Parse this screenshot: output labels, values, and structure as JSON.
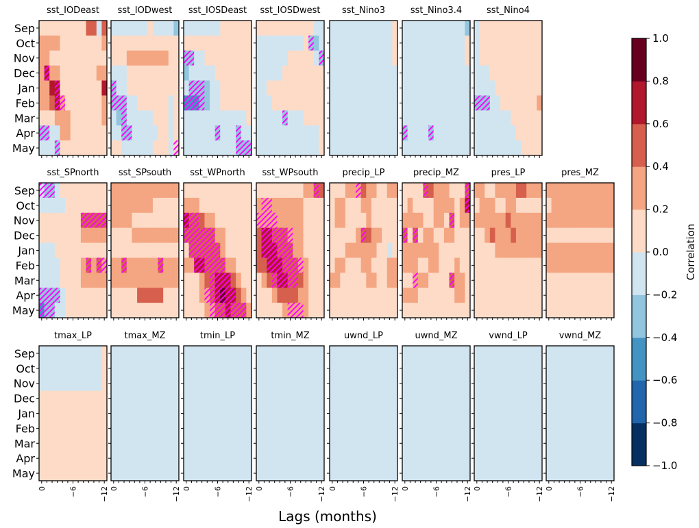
{
  "chart_data": {
    "type": "heatmap",
    "title": "",
    "xlabel": "Lags (months)",
    "ylabel": "",
    "x_tick_labels": [
      "0",
      "−6",
      "−12"
    ],
    "x_tick_values": [
      0,
      -6,
      -12
    ],
    "lags": [
      0,
      -1,
      -2,
      -3,
      -4,
      -5,
      -6,
      -7,
      -8,
      -9,
      -10,
      -11,
      -12
    ],
    "months": [
      "Sep",
      "Oct",
      "Nov",
      "Dec",
      "Jan",
      "Feb",
      "Mar",
      "Apr",
      "May"
    ],
    "colorbar": {
      "label": "Correlation",
      "range": [
        -1.0,
        1.0
      ],
      "levels": [
        -1.0,
        -0.8,
        -0.6,
        -0.4,
        -0.2,
        0.0,
        0.2,
        0.4,
        0.6,
        0.8,
        1.0
      ],
      "tick_labels": [
        "−1.0",
        "−0.8",
        "−0.6",
        "−0.4",
        "−0.2",
        "0.0",
        "0.2",
        "0.4",
        "0.6",
        "0.8",
        "1.0"
      ],
      "colors": [
        "#053061",
        "#2166ac",
        "#4393c3",
        "#92c5de",
        "#d1e5f0",
        "#fddbc7",
        "#f4a582",
        "#d6604d",
        "#b2182b",
        "#67001f"
      ]
    },
    "hatch_note": "Magenta diagonal hatching marks significant correlations",
    "hatch_color": "#ff00ff",
    "panel_rows": [
      [
        "sst_IODeast",
        "sst_IODwest",
        "sst_IOSDeast",
        "sst_IOSDwest",
        "sst_Nino3",
        "sst_Nino3.4",
        "sst_Nino4"
      ],
      [
        "sst_SPnorth",
        "sst_SPsouth",
        "sst_WPnorth",
        "sst_WPsouth",
        "precip_LP",
        "precip_MZ",
        "pres_LP",
        "pres_MZ"
      ],
      [
        "tmax_LP",
        "tmax_MZ",
        "tmin_LP",
        "tmin_MZ",
        "uwnd_LP",
        "uwnd_MZ",
        "vwnd_LP",
        "vwnd_MZ"
      ]
    ],
    "panels": {
      "sst_IODeast": {
        "v": [
          "0,0,0,0,0,0,0,0,0,2,2,-1,2",
          "1,1,1,1,0,0,0,0,0,0,0,0,1",
          "1,1,0,0,0,0,0,0,0,0,0,0,0",
          "1,3,1,1,0,0,0,0,0,0,0,1,1",
          "1,1,3,3,0,0,0,0,0,0,0,0,3",
          "1,1,2,3,1,0,0,0,0,0,0,0,1",
          "0,0,0,1,1,1,0,0,0,0,0,0,1",
          "-2,-2,-1,-1,1,1,0,0,0,0,0,0,0",
          "-1,-1,-1,-2,0,0,0,0,0,0,0,0,0"
        ],
        "h": [
          "",
          "",
          "",
          "1",
          "3",
          "3,4",
          "",
          "0,1",
          "3"
        ]
      },
      "sst_IODwest": {
        "v": [
          "-1,-1,-1,-1,-1,-1,-1,0,-1,-1,-1,-1,-2",
          "0,0,0,0,0,0,0,0,0,0,0,0,0",
          "0,0,0,1,1,1,1,1,1,1,1,0,0",
          "-1,-1,-1,0,0,0,0,0,0,0,0,0,0",
          "-2,-1,-1,0,0,0,0,0,0,0,0,0,0",
          "-2,-2,-2,-1,-1,0,0,0,0,0,0,-1,0",
          "-1,-2,-2,-1,-1,-1,-1,-1,0,0,0,-1,0",
          "-1,-1,-2,-2,-1,-1,-1,-1,-1,0,0,-1,0",
          "0,0,-1,-1,-1,-1,-1,-1,0,0,0,-1,0"
        ],
        "h": [
          "",
          "",
          "",
          "",
          "0",
          "0,1,2",
          "2",
          "2,3",
          "12"
        ]
      },
      "sst_IOSDeast": {
        "v": [
          "-1,-1,-1,-1,-1,-1,-1,0,0,0,0,0,0",
          "0,0,0,0,0,0,0,0,0,0,0,0,0",
          "-2,-2,-1,-1,0,0,0,0,0,0,0,0,0",
          "-2,-1,-1,-1,-1,-1,0,0,0,0,0,0,0",
          "-1,-2,-2,-2,-2,-1,-1,0,0,0,0,0,0",
          "-3,-3,-3,-2,-2,-1,-1,0,0,0,0,0,0",
          "-1,-1,-1,-1,-1,-1,-1,-1,-1,-1,-1,-1,0",
          "-1,-1,-1,-1,-1,-1,-2,-1,-1,-1,-2,-1,-1",
          "-1,-1,-1,-1,-1,-1,-1,-1,-1,-1,-2,-2,-2"
        ],
        "h": [
          "",
          "",
          "0,1",
          "",
          "1,2,3",
          "0,1,2,3",
          "",
          "6,10",
          "10,11,12"
        ]
      },
      "sst_IOSDwest": {
        "v": [
          "0,0,0,0,0,0,0,0,0,0,0,-1,-1",
          "-1,-1,-1,-1,-1,-1,-1,-1,-1,0,-2,-2,-1",
          "-1,-1,-1,-1,-1,-1,0,0,0,0,0,-1,-2",
          "-1,-1,-1,-1,-1,0,0,0,0,0,0,0,0",
          "-1,-1,0,0,0,0,0,0,0,0,0,0,0",
          "-1,-1,-1,0,0,0,0,0,0,0,0,0,0",
          "-1,-1,-1,-1,-1,-2,-1,-1,-1,0,0,0,0",
          "-1,-1,-1,-1,-1,-1,-1,-1,-1,-1,-1,-1,0",
          "-1,-1,-1,-1,-1,-1,-1,-1,-1,-1,-1,-1,0"
        ],
        "h": [
          "",
          "10",
          "12",
          "",
          "",
          "",
          "5",
          "",
          ""
        ]
      },
      "sst_Nino3": {
        "v": [
          "-1,-1,-1,-1,-1,-1,-1,-1,-1,-1,-1,-1,0",
          "-1,-1,-1,-1,-1,-1,-1,-1,-1,-1,-1,-1,0",
          "-1,-1,-1,-1,-1,-1,-1,-1,-1,-1,-1,-1,0",
          "-1,-1,-1,-1,-1,-1,-1,-1,-1,-1,-1,-1,-1",
          "-1,-1,-1,-1,-1,-1,-1,-1,-1,-1,-1,-1,-1",
          "-1,-1,-1,-1,-1,-1,-1,-1,-1,-1,-1,-1,-1",
          "-1,-1,-1,-1,-1,-1,-1,-1,-1,-1,-1,-1,-1",
          "-1,-1,-1,-1,-1,-1,-1,-1,-1,-1,-1,-1,-1",
          "-1,-1,-1,-1,-1,-1,-1,-1,-1,-1,-1,-1,-1"
        ],
        "h": [
          "",
          "",
          "",
          "",
          "",
          "",
          "",
          "",
          ""
        ]
      },
      "sst_Nino3.4": {
        "v": [
          "-1,-1,-1,-1,-1,-1,-1,-1,-1,-1,-1,-1,-2",
          "-1,-1,-1,-1,-1,-1,-1,-1,-1,-1,-1,-1,0",
          "-1,-1,-1,-1,-1,-1,-1,-1,-1,-1,-1,-1,0",
          "-1,-1,-1,-1,-1,-1,-1,-1,-1,-1,-1,-1,-1",
          "-1,-1,-1,-1,-1,-1,-1,-1,-1,-1,-1,-1,-1",
          "-1,-1,-1,-1,-1,-1,-1,-1,-1,-1,-1,-1,-1",
          "-1,-1,-1,-1,-1,-1,-1,-1,-1,-1,-1,-1,-1",
          "-2,-1,-1,-1,-1,-2,-1,-1,-1,-1,-1,-1,-1",
          "-1,-1,-1,-1,-1,-1,-1,-1,-1,-1,-1,-1,-1"
        ],
        "h": [
          "",
          "",
          "",
          "",
          "",
          "",
          "",
          "0,5",
          ""
        ]
      },
      "sst_Nino4": {
        "v": [
          "-1,0,0,0,0,0,0,0,0,0,0,0,0",
          "-1,0,0,0,0,0,0,0,0,0,0,0,0",
          "-1,0,0,0,0,0,0,0,0,0,0,0,0",
          "-1,-1,-1,0,0,0,0,0,0,0,0,0,0",
          "-1,-1,-1,-1,0,0,0,0,0,0,0,0,0",
          "-2,-2,-2,-1,-1,0,0,0,0,0,0,0,1",
          "-1,-1,-1,-1,-1,-1,-1,0,0,0,0,0,0",
          "-1,-1,-1,-1,-1,-1,-1,-1,0,0,0,0,0",
          "-1,-1,-1,-1,-1,-1,-1,-1,-1,0,0,0,0"
        ],
        "h": [
          "",
          "",
          "",
          "",
          "",
          "0,1,2",
          "",
          "",
          ""
        ]
      },
      "sst_SPnorth": {
        "v": [
          "-1,-2,-2,-1,0,0,0,0,0,0,0,0,0",
          "-1,-1,-1,-1,-1,0,0,0,0,0,0,0,0",
          "0,0,0,0,0,0,0,0,2,2,2,2,2",
          "0,0,0,0,0,0,0,0,1,1,1,1,1",
          "-1,-1,-1,0,0,0,0,0,0,0,0,0,0",
          "-1,-1,-1,-1,0,0,0,0,1,2,1,2,1",
          "-1,-1,-1,-1,0,0,0,0,1,1,1,1,1",
          "-2,-2,-2,-2,-1,0,0,0,0,0,0,0,0",
          "-3,-2,-2,-1,-1,0,0,0,0,0,0,0,0"
        ],
        "h": [
          "0,1,2",
          "",
          "8,9,10,11,12",
          "",
          "",
          "9,11,12",
          "",
          "0,1,2,3",
          "0,1,2"
        ]
      },
      "sst_SPsouth": {
        "v": [
          "1,1,1,1,1,1,1,1,1,1,1,1,1",
          "1,1,1,1,1,1,1,1,0,0,0,0,0",
          "1,1,1,1,0,0,0,0,0,0,0,0,0",
          "0,0,0,0,1,1,1,1,1,1,1,1,1",
          "0,0,0,0,0,0,0,0,0,0,0,0,0",
          "1,1,2,1,1,1,1,1,1,2,1,1,1",
          "1,1,1,1,1,1,1,1,1,1,1,1,1",
          "0,0,0,0,0,2,2,2,2,2,0,0,0",
          "0,0,0,0,0,0,0,0,0,0,0,0,0"
        ],
        "h": [
          "",
          "",
          "",
          "",
          "",
          "2,9",
          "",
          "",
          ""
        ]
      },
      "sst_WPnorth": {
        "v": [
          "0,0,0,0,0,0,0,0,0,0,0,0,0",
          "1,1,1,0,0,0,0,0,0,0,0,0,0",
          "3,2,2,2,1,1,0,0,0,0,0,0,0",
          "2,2,2,2,2,2,1,1,0,0,0,0,0",
          "0,2,2,2,2,2,2,1,0,0,0,0,0",
          "1,1,3,3,2,2,2,2,1,1,0,0,0",
          "0,0,0,1,2,2,3,3,3,2,1,0,0",
          "0,0,0,1,1,2,3,4,3,3,2,1,0",
          "0,0,0,0,1,1,2,2,3,2,2,2,1"
        ],
        "h": [
          "",
          "",
          "0,1,2",
          "0,1,2,3,4,5",
          "1,2,3,4,5,6",
          "2,3,4,5,6,7",
          "5,6,7,8",
          "4,5,6,7,8,9",
          "5,6,7,8,9,10,11"
        ]
      },
      "sst_WPsouth": {
        "v": [
          "0,0,0,0,0,0,0,0,0,1,1,2,2",
          "1,1,1,1,1,1,1,1,1,0,0,0,0",
          "1,1,1,1,1,1,1,1,1,0,0,0,0",
          "2,3,3,2,2,2,1,1,1,0,0,0,0",
          "2,3,3,3,2,2,2,1,1,0,0,0,0",
          "2,2,3,3,3,2,2,2,1,1,0,0,0",
          "0,1,2,2,3,3,2,2,2,1,0,0,0",
          "0,0,0,1,2,2,2,2,1,1,0,0,0",
          "0,0,0,0,0,1,1,1,1,1,0,0,0"
        ],
        "h": [
          "11",
          "1,2",
          "0,1,2,3",
          "1,2,3,4,5,6",
          "1,2,3,4,5,6",
          "2,3,4,5,6,7,8",
          "3,4,5,6,7",
          "",
          "6,7,8"
        ]
      },
      "precip_LP": {
        "v": [
          "0,0,0,1,1,1,2,1,1,0,0,1,1",
          "0,1,1,0,0,0,1,1,0,0,0,0,0",
          "0,1,1,0,0,0,0,1,0,0,0,0,0",
          "0,0,0,0,0,1,2,2,1,1,0,0,0",
          "0,0,0,1,1,1,1,1,1,0,0,-1,0",
          "0,1,1,0,0,0,1,1,0,0,0,1,1",
          "1,1,0,0,0,0,0,1,1,0,0,1,1",
          "0,0,0,0,0,0,0,0,0,0,0,0,0",
          "0,0,0,0,0,0,0,0,0,0,0,0,0"
        ],
        "h": [
          "5",
          "",
          "",
          "6",
          "",
          "",
          "",
          "",
          ""
        ]
      },
      "precip_MZ": {
        "v": [
          "0,0,0,0,2,2,1,1,1,0,0,0,2",
          "0,1,0,0,0,0,1,1,1,1,0,1,3",
          "1,1,1,1,0,0,1,1,0,2,0,1,1",
          "2,0,2,0,1,1,0,0,1,1,0,0,0",
          "1,1,1,1,1,1,1,0,0,0,0,0,0",
          "1,1,1,0,0,1,1,0,0,0,1,0,0",
          "0,0,1,1,1,0,0,0,0,2,1,1,0",
          "1,1,1,0,0,0,0,0,0,0,1,1,0",
          "0,0,0,0,0,0,0,0,0,0,0,0,0"
        ],
        "h": [
          "4,12",
          "12",
          "9",
          "0,2",
          "",
          "",
          "2,9",
          "",
          ""
        ]
      },
      "pres_LP": {
        "v": [
          "1,1,0,0,1,1,1,1,2,2,1,1,1",
          "0,1,1,1,0,0,1,1,0,0,0,0,0",
          "1,1,1,1,1,1,2,1,1,1,1,1,1",
          "0,0,1,2,1,1,1,2,1,1,1,1,1",
          "0,0,0,0,1,1,1,1,1,1,1,1,1",
          "0,0,0,0,0,0,0,0,0,0,0,0,0",
          "0,0,0,0,0,0,0,0,0,0,0,0,0",
          "0,0,0,0,0,0,0,0,0,0,0,0,0",
          "0,0,0,0,0,0,0,0,0,0,0,0,0"
        ],
        "h": [
          "",
          "",
          "",
          "",
          "",
          "",
          "",
          "",
          ""
        ]
      },
      "pres_MZ": {
        "v": [
          "1,1,1,1,1,1,1,1,1,1,1,1,1",
          "0,1,1,1,1,1,1,1,1,1,1,1,1",
          "1,1,1,1,1,1,1,1,1,1,1,1,1",
          "0,0,0,0,0,0,0,0,0,0,0,0,0",
          "1,1,1,1,1,1,1,1,1,1,1,1,1",
          "1,1,1,1,1,1,1,1,1,1,1,1,1",
          "0,0,0,0,0,0,0,0,0,0,0,0,0",
          "0,0,0,0,0,0,0,0,0,0,0,0,0",
          "0,0,0,0,0,0,0,0,0,0,0,0,0"
        ],
        "h": [
          "",
          "",
          "",
          "",
          "",
          "",
          "",
          "",
          ""
        ]
      },
      "tmax_LP": {
        "v": [
          "-1,-1,-1,-1,-1,-1,-1,-1,-1,-1,-1,-1,0",
          "-1,-1,-1,-1,-1,-1,-1,-1,-1,-1,-1,-1,0",
          "-1,-1,-1,-1,-1,-1,-1,-1,-1,-1,-1,-1,0",
          "0,0,0,0,0,0,0,0,0,0,0,0,0",
          "0,0,0,0,0,0,0,0,0,0,0,0,0",
          "0,0,0,0,0,0,0,0,0,0,0,0,0",
          "0,0,0,0,0,0,0,0,0,0,0,0,0",
          "0,0,0,0,0,0,0,0,0,0,0,0,0",
          "0,0,0,0,0,0,0,0,0,0,0,0,0"
        ],
        "h": [
          "",
          "",
          "",
          "",
          "",
          "",
          "",
          "",
          ""
        ]
      },
      "tmax_MZ": {
        "v": [
          "-1,-1,-1,-1,-1,-1,-1,-1,-1,-1,-1,-1,-1",
          "-1,-1,-1,-1,-1,-1,-1,-1,-1,-1,-1,-1,-1",
          "-1,-1,-1,-1,-1,-1,-1,-1,-1,-1,-1,-1,-1",
          "-1,-1,-1,-1,-1,-1,-1,-1,-1,-1,-1,-1,-1",
          "-1,-1,-1,-1,-1,-1,-1,-1,-1,-1,-1,-1,-1",
          "-1,-1,-1,-1,-1,-1,-1,-1,-1,-1,-1,-1,-1",
          "-1,-1,-1,-1,-1,-1,-1,-1,-1,-1,-1,-1,-1",
          "-1,-1,-1,-1,-1,-1,-1,-1,-1,-1,-1,-1,-1",
          "-1,-1,-1,-1,-1,-1,-1,-1,-1,-1,-1,-1,-1"
        ],
        "h": [
          "",
          "",
          "",
          "",
          "",
          "",
          "",
          "",
          ""
        ]
      },
      "tmin_LP": {
        "v": [
          "-1,-1,-1,-1,-1,-1,-1,-1,-1,-1,-1,-1,-1",
          "-1,-1,-1,-1,-1,-1,-1,-1,-1,-1,-1,-1,-1",
          "-1,-1,-1,-1,-1,-1,-1,-1,-1,-1,-1,-1,-1",
          "-1,-1,-1,-1,-1,-1,-1,-1,-1,-1,-1,-1,-1",
          "-1,-1,-1,-1,-1,-1,-1,-1,-1,-1,-1,-1,-1",
          "-1,-1,-1,-1,-1,-1,-1,-1,-1,-1,-1,-1,-1",
          "-1,-1,-1,-1,-1,-1,-1,-1,-1,-1,-1,-1,-1",
          "-1,-1,-1,-1,-1,-1,-1,-1,-1,-1,-1,-1,-1",
          "-1,-1,-1,-1,-1,-1,-1,-1,-1,-1,-1,-1,-1"
        ],
        "h": [
          "",
          "",
          "",
          "",
          "",
          "",
          "",
          "",
          ""
        ]
      },
      "tmin_MZ": {
        "v": [
          "-1,-1,-1,-1,-1,-1,-1,-1,-1,-1,-1,-1,-1",
          "-1,-1,-1,-1,-1,-1,-1,-1,-1,-1,-1,-1,-1",
          "-1,-1,-1,-1,-1,-1,-1,-1,-1,-1,-1,-1,-1",
          "-1,-1,-1,-1,-1,-1,-1,-1,-1,-1,-1,-1,-1",
          "-1,-1,-1,-1,-1,-1,-1,-1,-1,-1,-1,-1,-1",
          "-1,-1,-1,-1,-1,-1,-1,-1,-1,-1,-1,-1,-1",
          "-1,-1,-1,-1,-1,-1,-1,-1,-1,-1,-1,-1,-1",
          "-1,-1,-1,-1,-1,-1,-1,-1,-1,-1,-1,-1,-1",
          "-1,-1,-1,-1,-1,-1,-1,-1,-1,-1,-1,-1,-1"
        ],
        "h": [
          "",
          "",
          "",
          "",
          "",
          "",
          "",
          "",
          ""
        ]
      },
      "uwnd_LP": {
        "v": [
          "-1,-1,-1,-1,-1,-1,-1,-1,-1,-1,-1,-1,-1",
          "-1,-1,-1,-1,-1,-1,-1,-1,-1,-1,-1,-1,-1",
          "-1,-1,-1,-1,-1,-1,-1,-1,-1,-1,-1,-1,-1",
          "-1,-1,-1,-1,-1,-1,-1,-1,-1,-1,-1,-1,-1",
          "-1,-1,-1,-1,-1,-1,-1,-1,-1,-1,-1,-1,-1",
          "-1,-1,-1,-1,-1,-1,-1,-1,-1,-1,-1,-1,-1",
          "-1,-1,-1,-1,-1,-1,-1,-1,-1,-1,-1,-1,-1",
          "-1,-1,-1,-1,-1,-1,-1,-1,-1,-1,-1,-1,-1",
          "-1,-1,-1,-1,-1,-1,-1,-1,-1,-1,-1,-1,-1"
        ],
        "h": [
          "",
          "",
          "",
          "",
          "",
          "",
          "",
          "",
          ""
        ]
      },
      "uwnd_MZ": {
        "v": [
          "-1,-1,-1,-1,-1,-1,-1,-1,-1,-1,-1,-1,-1",
          "-1,-1,-1,-1,-1,-1,-1,-1,-1,-1,-1,-1,-1",
          "-1,-1,-1,-1,-1,-1,-1,-1,-1,-1,-1,-1,-1",
          "-1,-1,-1,-1,-1,-1,-1,-1,-1,-1,-1,-1,-1",
          "-1,-1,-1,-1,-1,-1,-1,-1,-1,-1,-1,-1,-1",
          "-1,-1,-1,-1,-1,-1,-1,-1,-1,-1,-1,-1,-1",
          "-1,-1,-1,-1,-1,-1,-1,-1,-1,-1,-1,-1,-1",
          "-1,-1,-1,-1,-1,-1,-1,-1,-1,-1,-1,-1,-1",
          "-1,-1,-1,-1,-1,-1,-1,-1,-1,-1,-1,-1,-1"
        ],
        "h": [
          "",
          "",
          "",
          "",
          "",
          "",
          "",
          "",
          ""
        ]
      },
      "vwnd_LP": {
        "v": [
          "-1,-1,-1,-1,-1,-1,-1,-1,-1,-1,-1,-1,-1",
          "-1,-1,-1,-1,-1,-1,-1,-1,-1,-1,-1,-1,-1",
          "-1,-1,-1,-1,-1,-1,-1,-1,-1,-1,-1,-1,-1",
          "-1,-1,-1,-1,-1,-1,-1,-1,-1,-1,-1,-1,-1",
          "-1,-1,-1,-1,-1,-1,-1,-1,-1,-1,-1,-1,-1",
          "-1,-1,-1,-1,-1,-1,-1,-1,-1,-1,-1,-1,-1",
          "-1,-1,-1,-1,-1,-1,-1,-1,-1,-1,-1,-1,-1",
          "-1,-1,-1,-1,-1,-1,-1,-1,-1,-1,-1,-1,-1",
          "-1,-1,-1,-1,-1,-1,-1,-1,-1,-1,-1,-1,-1"
        ],
        "h": [
          "",
          "",
          "",
          "",
          "",
          "",
          "",
          "",
          ""
        ]
      },
      "vwnd_MZ": {
        "v": [
          "-1,-1,-1,-1,-1,-1,-1,-1,-1,-1,-1,-1,-1",
          "-1,-1,-1,-1,-1,-1,-1,-1,-1,-1,-1,-1,-1",
          "-1,-1,-1,-1,-1,-1,-1,-1,-1,-1,-1,-1,-1",
          "-1,-1,-1,-1,-1,-1,-1,-1,-1,-1,-1,-1,-1",
          "-1,-1,-1,-1,-1,-1,-1,-1,-1,-1,-1,-1,-1",
          "-1,-1,-1,-1,-1,-1,-1,-1,-1,-1,-1,-1,-1",
          "-1,-1,-1,-1,-1,-1,-1,-1,-1,-1,-1,-1,-1",
          "-1,-1,-1,-1,-1,-1,-1,-1,-1,-1,-1,-1,-1",
          "-1,-1,-1,-1,-1,-1,-1,-1,-1,-1,-1,-1,-1"
        ],
        "h": [
          "",
          "",
          "",
          "",
          "",
          "",
          "",
          "",
          ""
        ]
      }
    },
    "value_encoding": "v rows = months Sep..May; comma-separated columns = lags 0..-12; integer k means correlation bin [0.2*k-0.2, 0.2*k) for k<=0 and [0.2*(k-1), 0.2*k) for k>0 (i.e. colour index = k+5 into colors); h lists hatched lag indices per month"
  }
}
